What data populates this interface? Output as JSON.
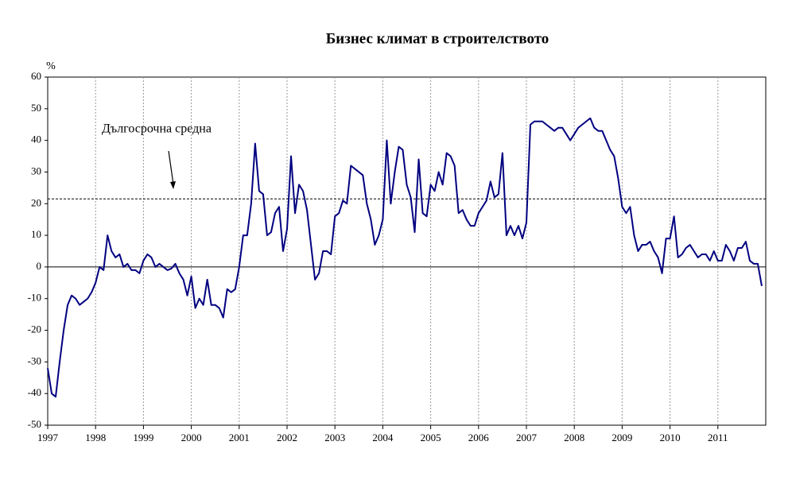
{
  "chart_data": {
    "type": "line",
    "title": "Бизнес климат в строителството",
    "y_label": "%",
    "categories": [
      "1997",
      null,
      null,
      null,
      null,
      null,
      null,
      null,
      null,
      null,
      null,
      null,
      "1998",
      null,
      null,
      null,
      null,
      null,
      null,
      null,
      null,
      null,
      null,
      null,
      "1999",
      null,
      null,
      null,
      null,
      null,
      null,
      null,
      null,
      null,
      null,
      null,
      "2000",
      null,
      null,
      null,
      null,
      null,
      null,
      null,
      null,
      null,
      null,
      null,
      "2001",
      null,
      null,
      null,
      null,
      null,
      null,
      null,
      null,
      null,
      null,
      null,
      "2002",
      null,
      null,
      null,
      null,
      null,
      null,
      null,
      null,
      null,
      null,
      null,
      "2003",
      null,
      null,
      null,
      null,
      null,
      null,
      null,
      null,
      null,
      null,
      null,
      "2004",
      null,
      null,
      null,
      null,
      null,
      null,
      null,
      null,
      null,
      null,
      null,
      "2005",
      null,
      null,
      null,
      null,
      null,
      null,
      null,
      null,
      null,
      null,
      null,
      "2006",
      null,
      null,
      null,
      null,
      null,
      null,
      null,
      null,
      null,
      null,
      null,
      "2007",
      null,
      null,
      null,
      null,
      null,
      null,
      null,
      null,
      null,
      null,
      null,
      "2008",
      null,
      null,
      null,
      null,
      null,
      null,
      null,
      null,
      null,
      null,
      null,
      "2009",
      null,
      null,
      null,
      null,
      null,
      null,
      null,
      null,
      null,
      null,
      null,
      "2010",
      null,
      null,
      null,
      null,
      null,
      null,
      null,
      null,
      null,
      null,
      null,
      "2011",
      null,
      null,
      null,
      null,
      null,
      null,
      null,
      null,
      null,
      null,
      null
    ],
    "values": [
      -32,
      -40,
      -41,
      -30,
      -20,
      -12,
      -9,
      -10,
      -12,
      -11,
      -10,
      -8,
      -5,
      0,
      -1,
      10,
      5,
      3,
      4,
      0,
      1,
      -1,
      -1,
      -2,
      2,
      4,
      3,
      0,
      1,
      0,
      -1,
      -0.5,
      1,
      -2,
      -4,
      -9,
      -3,
      -13,
      -10,
      -12,
      -4,
      -12,
      -12,
      -13,
      -16,
      -7,
      -8,
      -7,
      0,
      10,
      10,
      20,
      39,
      24,
      23,
      10,
      11,
      17,
      19,
      5,
      12,
      35,
      17,
      26,
      24,
      18,
      7,
      -4,
      -2,
      5,
      5,
      4,
      16,
      17,
      21,
      20,
      32,
      31,
      30,
      29,
      20,
      15,
      7,
      10,
      15,
      40,
      20,
      30,
      38,
      37,
      26,
      22,
      11,
      34,
      17,
      16,
      26,
      24,
      30,
      26,
      36,
      35,
      32,
      17,
      18,
      15,
      13,
      13,
      17,
      19,
      21,
      27,
      22,
      23,
      36,
      10,
      13,
      10,
      13,
      9,
      14,
      45,
      46,
      46,
      46,
      45,
      44,
      43,
      44,
      44,
      42,
      40,
      42,
      44,
      45,
      46,
      47,
      44,
      43,
      43,
      40,
      37,
      35,
      28,
      19,
      17,
      19,
      10,
      5,
      7,
      7,
      8,
      5,
      3,
      -2,
      9,
      9,
      16,
      3,
      4,
      6,
      7,
      5,
      3,
      4,
      4,
      2,
      5,
      2,
      2,
      7,
      5,
      2,
      6,
      6,
      8,
      2,
      1,
      1,
      -6
    ],
    "color": "#000080",
    "reference_line": {
      "value": 21.5,
      "label": "Дългосрочна средна"
    },
    "ylim": [
      -50,
      60
    ],
    "yticks": [
      -50,
      -40,
      -30,
      -20,
      -10,
      0,
      10,
      20,
      30,
      40,
      50,
      60
    ],
    "grid": true
  }
}
